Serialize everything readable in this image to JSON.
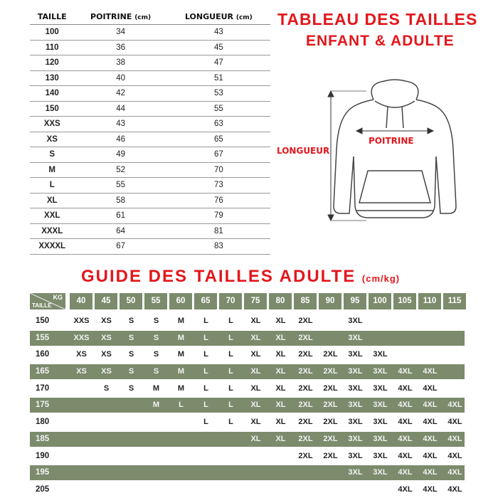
{
  "kids_table": {
    "headers": [
      "TAILLE",
      "POITRINE",
      "LONGUEUR"
    ],
    "unit": "(cm)",
    "rows": [
      [
        "100",
        "34",
        "43"
      ],
      [
        "110",
        "36",
        "45"
      ],
      [
        "120",
        "38",
        "47"
      ],
      [
        "130",
        "40",
        "51"
      ],
      [
        "140",
        "42",
        "53"
      ],
      [
        "150",
        "44",
        "55"
      ],
      [
        "XXS",
        "43",
        "63"
      ],
      [
        "XS",
        "46",
        "65"
      ],
      [
        "S",
        "49",
        "67"
      ],
      [
        "M",
        "52",
        "70"
      ],
      [
        "L",
        "55",
        "73"
      ],
      [
        "XL",
        "58",
        "76"
      ],
      [
        "XXL",
        "61",
        "79"
      ],
      [
        "XXXL",
        "64",
        "81"
      ],
      [
        "XXXXL",
        "67",
        "83"
      ]
    ]
  },
  "header": {
    "title_line1": "TABLEAU DES TAILLES",
    "title_line2": "ENFANT & ADULTE"
  },
  "diagram": {
    "length_label": "LONGUEUR",
    "chest_label": "POITRINE",
    "icon": "hoodie-icon"
  },
  "adult_guide": {
    "title": "GUIDE DES TAILLES ADULTE",
    "unit": "(cm/kg)",
    "corner_top": "KG",
    "corner_bottom": "TAILLE",
    "weights": [
      "40",
      "45",
      "50",
      "55",
      "60",
      "65",
      "70",
      "75",
      "80",
      "85",
      "90",
      "95",
      "100",
      "105",
      "110",
      "115"
    ],
    "rows": [
      {
        "height": "150",
        "sizes": [
          "XXS",
          "XS",
          "S",
          "S",
          "M",
          "L",
          "L",
          "XL",
          "XL",
          "2XL",
          "",
          "3XL",
          "",
          "",
          "",
          ""
        ]
      },
      {
        "height": "155",
        "sizes": [
          "XXS",
          "XS",
          "S",
          "S",
          "M",
          "L",
          "L",
          "XL",
          "XL",
          "2XL",
          "",
          "3XL",
          "",
          "",
          "",
          ""
        ]
      },
      {
        "height": "160",
        "sizes": [
          "XS",
          "XS",
          "S",
          "S",
          "M",
          "L",
          "L",
          "XL",
          "XL",
          "2XL",
          "2XL",
          "3XL",
          "3XL",
          "",
          "",
          ""
        ]
      },
      {
        "height": "165",
        "sizes": [
          "XS",
          "XS",
          "S",
          "S",
          "M",
          "L",
          "L",
          "XL",
          "XL",
          "2XL",
          "2XL",
          "3XL",
          "3XL",
          "4XL",
          "4XL",
          ""
        ]
      },
      {
        "height": "170",
        "sizes": [
          "",
          "S",
          "S",
          "M",
          "M",
          "L",
          "L",
          "XL",
          "XL",
          "2XL",
          "2XL",
          "3XL",
          "3XL",
          "4XL",
          "4XL",
          ""
        ]
      },
      {
        "height": "175",
        "sizes": [
          "",
          "",
          "",
          "M",
          "L",
          "L",
          "L",
          "XL",
          "XL",
          "2XL",
          "2XL",
          "3XL",
          "3XL",
          "4XL",
          "4XL",
          "4XL"
        ]
      },
      {
        "height": "180",
        "sizes": [
          "",
          "",
          "",
          "",
          "",
          "L",
          "L",
          "XL",
          "XL",
          "2XL",
          "2XL",
          "3XL",
          "3XL",
          "4XL",
          "4XL",
          "4XL"
        ]
      },
      {
        "height": "185",
        "sizes": [
          "",
          "",
          "",
          "",
          "",
          "",
          "",
          "XL",
          "XL",
          "2XL",
          "2XL",
          "3XL",
          "3XL",
          "4XL",
          "4XL",
          "4XL"
        ]
      },
      {
        "height": "190",
        "sizes": [
          "",
          "",
          "",
          "",
          "",
          "",
          "",
          "",
          "",
          "2XL",
          "2XL",
          "3XL",
          "3XL",
          "4XL",
          "4XL",
          "4XL"
        ]
      },
      {
        "height": "195",
        "sizes": [
          "",
          "",
          "",
          "",
          "",
          "",
          "",
          "",
          "",
          "",
          "",
          "3XL",
          "3XL",
          "4XL",
          "4XL",
          "4XL"
        ]
      },
      {
        "height": "205",
        "sizes": [
          "",
          "",
          "",
          "",
          "",
          "",
          "",
          "",
          "",
          "",
          "",
          "",
          "",
          "4XL",
          "4XL",
          "4XL"
        ]
      }
    ],
    "colors": {
      "band": "#7b8b6c",
      "title": "#e3161b"
    }
  }
}
